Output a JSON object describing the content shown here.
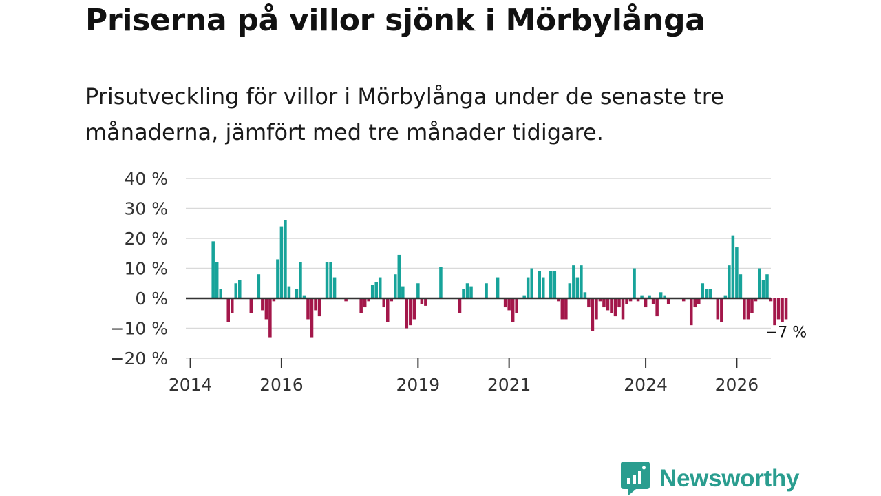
{
  "title": "Priserna på villor sjönk i Mörbylånga",
  "subtitle": "Prisutveckling för villor i Mörbylånga under de senaste tre månaderna, jämfört med tre månader tidigare.",
  "brand": {
    "name": "Newsworthy",
    "color": "#2a9d8f",
    "icon": "newsworthy-logo-icon"
  },
  "colors": {
    "positive": "#17a39a",
    "negative": "#a3174a",
    "grid": "#d9d9d9",
    "zero_line": "#333333"
  },
  "chart_data": {
    "type": "bar",
    "title": "Priserna på villor sjönk i Mörbylånga",
    "xlabel": "",
    "ylabel": "",
    "ylim": [
      -20,
      40
    ],
    "yticks": [
      40,
      30,
      20,
      10,
      0,
      -10,
      -20
    ],
    "ytick_labels": [
      "40 %",
      "30 %",
      "20 %",
      "10 %",
      "0 %",
      "−10 %",
      "−20 %"
    ],
    "xticks": [
      2014,
      2016,
      2019,
      2021,
      2024,
      2026
    ],
    "xtick_labels": [
      "2014",
      "2016",
      "2019",
      "2021",
      "2024",
      "2026"
    ],
    "xlim": [
      2013.9,
      2026.75
    ],
    "frequency": "monthly",
    "start": 2014.5,
    "values": [
      19,
      12,
      3,
      0,
      -8,
      -5,
      5,
      6,
      0,
      0,
      -5,
      0,
      8,
      -4,
      -7,
      -13,
      -1,
      13,
      24,
      26,
      4,
      0,
      3,
      12,
      1,
      -7,
      -13,
      -4,
      -6,
      0,
      12,
      12,
      7,
      0,
      0,
      -1,
      0,
      0,
      0,
      -5,
      -3,
      -1,
      4.5,
      5.5,
      7,
      -3,
      -8,
      -1,
      8,
      14.5,
      4,
      -10,
      -9,
      -7,
      5,
      -2,
      -2.5,
      0,
      0,
      0,
      10.5,
      0,
      0,
      0,
      0,
      -5,
      3,
      5,
      4,
      0,
      0,
      0,
      5,
      0,
      0,
      7,
      0,
      -3,
      -4,
      -8,
      -5,
      0,
      1,
      7,
      10,
      0,
      9,
      7,
      0,
      9,
      9,
      -1,
      -7,
      -7,
      5,
      11,
      7,
      11,
      2,
      -3,
      -11,
      -7,
      -1,
      -3,
      -4,
      -5,
      -6,
      -3,
      -7,
      -2,
      -1,
      10,
      -1,
      1,
      -3,
      1,
      -2,
      -6,
      2,
      1,
      -2,
      0,
      0,
      0,
      -1,
      0,
      -9,
      -3,
      -2,
      5,
      3,
      3,
      0,
      -7,
      -8,
      1,
      11,
      21,
      17,
      8,
      -7,
      -7,
      -5,
      -1,
      10,
      6,
      8,
      -1,
      -9,
      -7,
      -8,
      -7
    ],
    "annotations": [
      {
        "text": "−7 %",
        "target": "last-bar"
      }
    ]
  }
}
